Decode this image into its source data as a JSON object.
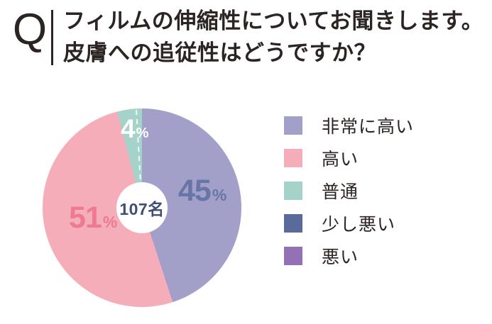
{
  "header": {
    "q_mark": "Q",
    "title_line1": "フィルムの伸縮性についてお聞きします。",
    "title_line2": "皮膚への追従性はどうですか？",
    "text_color": "#2b2422"
  },
  "chart_data": {
    "type": "pie",
    "subtype": "donut",
    "title": "フィルムの伸縮性についてお聞きします。皮膚への追従性はどうですか？",
    "categories": [
      "非常に高い",
      "高い",
      "普通",
      "少し悪い",
      "悪い"
    ],
    "values": [
      45,
      51,
      4,
      0,
      0
    ],
    "unit": "%",
    "colors": [
      "#a29fc9",
      "#f5aeb9",
      "#a6d3c9",
      "#5a6b9b",
      "#9471b4"
    ],
    "start_angle_deg": 0,
    "direction": "clockwise",
    "legend_position": "right",
    "center_label": "107名",
    "sample_size": 107,
    "center_text_color": "#3f4e75",
    "slice_labels": [
      {
        "value": "45",
        "unit": "%",
        "text_color": "#6876a6"
      },
      {
        "value": "51",
        "unit": "%",
        "text_color": "#ee7a90"
      },
      {
        "value": "4",
        "unit": "%",
        "text_color": "#ffffff"
      }
    ]
  },
  "legend": {
    "items": [
      {
        "label": "非常に高い"
      },
      {
        "label": "高い"
      },
      {
        "label": "普通"
      },
      {
        "label": "少し悪い"
      },
      {
        "label": "悪い"
      }
    ]
  }
}
